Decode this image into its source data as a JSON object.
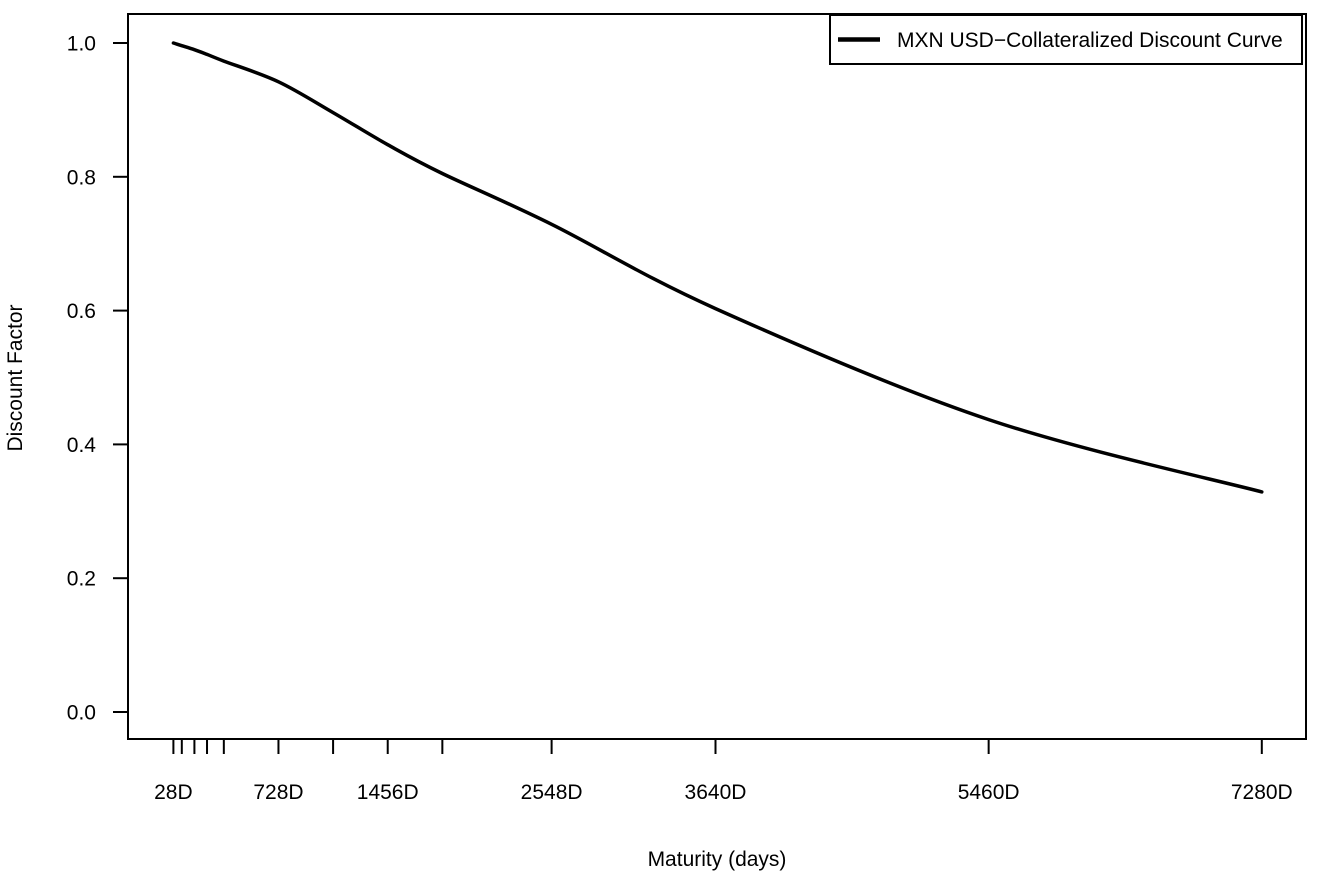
{
  "figure": {
    "background_color": "#ffffff",
    "foreground_color": "#000000"
  },
  "chart_data": {
    "type": "line",
    "title": "",
    "xlabel": "Maturity (days)",
    "ylabel": "Discount Factor",
    "grid": false,
    "legend_position": "topright",
    "x_axis": {
      "title": "Maturity (days)",
      "major_ticks": [
        {
          "days": 28,
          "label": "28D"
        },
        {
          "days": 728,
          "label": "728D"
        },
        {
          "days": 1456,
          "label": "1456D"
        },
        {
          "days": 2548,
          "label": "2548D"
        },
        {
          "days": 3640,
          "label": "3640D"
        },
        {
          "days": 5460,
          "label": "5460D"
        },
        {
          "days": 7280,
          "label": "7280D"
        }
      ],
      "minor_tick_days": [
        84,
        168,
        252,
        364,
        1092,
        1820
      ],
      "range_days": [
        28,
        7280
      ]
    },
    "y_axis": {
      "title": "Discount Factor",
      "ticks": [
        {
          "value": 0.0,
          "label": "0.0"
        },
        {
          "value": 0.2,
          "label": "0.2"
        },
        {
          "value": 0.4,
          "label": "0.4"
        },
        {
          "value": 0.6,
          "label": "0.6"
        },
        {
          "value": 0.8,
          "label": "0.8"
        },
        {
          "value": 1.0,
          "label": "1.0"
        }
      ],
      "range": [
        0.0,
        1.0
      ]
    },
    "series": [
      {
        "name": "MXN USD−Collateralized Discount Curve",
        "color": "#000000",
        "line_width": 3.5,
        "x_days": [
          28,
          84,
          168,
          252,
          364,
          728,
          1092,
          1456,
          1820,
          2548,
          3640,
          5460,
          7280
        ],
        "discount_factors": [
          1.0,
          0.996,
          0.99,
          0.983,
          0.973,
          0.942,
          0.896,
          0.848,
          0.805,
          0.729,
          0.603,
          0.437,
          0.329
        ]
      }
    ]
  }
}
